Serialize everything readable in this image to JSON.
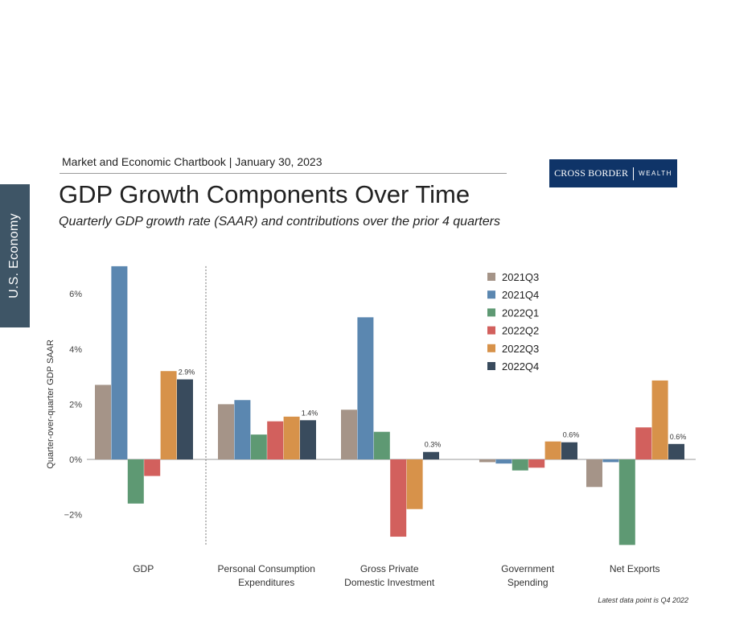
{
  "side_tab": {
    "label": "U.S. Economy"
  },
  "header": {
    "subheader": "Market and Economic Chartbook | January 30, 2023",
    "title": "GDP Growth Components Over Time",
    "subtitle": "Quarterly GDP growth rate (SAAR) and contributions over the prior 4 quarters"
  },
  "logo": {
    "main": "CROSS BORDER",
    "sub": "WEALTH"
  },
  "footnote": "Latest data point is Q4 2022",
  "chart_data": {
    "type": "bar",
    "categories": [
      [
        "GDP"
      ],
      [
        "Personal Consumption",
        "Expenditures"
      ],
      [
        "Gross Private",
        "Domestic Investment"
      ],
      [
        "Government",
        "Spending"
      ],
      [
        "Net Exports"
      ]
    ],
    "ylabel": "Quarter-over-quarter GDP SAAR",
    "yticks": [
      -2,
      0,
      2,
      4,
      6
    ],
    "ytick_labels": [
      "−2%",
      "0%",
      "2%",
      "4%",
      "6%"
    ],
    "ylim": [
      -3.1,
      7.0
    ],
    "legend_position": "top-right",
    "grid": false,
    "series": [
      {
        "name": "2021Q3",
        "color": "#a59488",
        "values": [
          2.7,
          2.0,
          1.8,
          -0.1,
          -1.0
        ]
      },
      {
        "name": "2021Q4",
        "color": "#5b87b0",
        "values": [
          7.0,
          2.15,
          5.15,
          -0.15,
          -0.1
        ]
      },
      {
        "name": "2022Q1",
        "color": "#5e9973",
        "values": [
          -1.6,
          0.9,
          1.0,
          -0.4,
          -3.1
        ]
      },
      {
        "name": "2022Q2",
        "color": "#d2605d",
        "values": [
          -0.6,
          1.38,
          -2.8,
          -0.3,
          1.16
        ]
      },
      {
        "name": "2022Q3",
        "color": "#d7924a",
        "values": [
          3.2,
          1.55,
          -1.8,
          0.65,
          2.86
        ]
      },
      {
        "name": "2022Q4",
        "color": "#394b5d",
        "values": [
          2.9,
          1.42,
          0.27,
          0.62,
          0.56
        ]
      }
    ],
    "data_labels": [
      "2.9%",
      "1.4%",
      "0.3%",
      "0.6%",
      "0.6%"
    ]
  }
}
